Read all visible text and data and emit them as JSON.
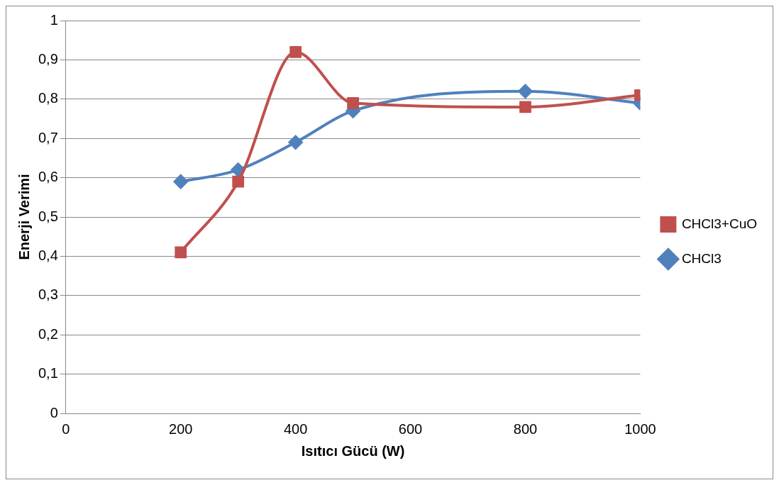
{
  "chart_data": {
    "type": "line",
    "xlabel": "Isıtıcı Gücü (W)",
    "ylabel": "Enerji Verimi",
    "x": [
      200,
      300,
      400,
      500,
      800,
      1000
    ],
    "series": [
      {
        "name": "CHCl3+CuO",
        "color": "#c0504d",
        "marker": "square",
        "values": [
          0.41,
          0.59,
          0.92,
          0.79,
          0.78,
          0.81
        ]
      },
      {
        "name": "CHCl3",
        "color": "#4f81bd",
        "marker": "diamond",
        "values": [
          0.59,
          0.62,
          0.69,
          0.77,
          0.82,
          0.79
        ]
      }
    ],
    "xlim": [
      0,
      1000
    ],
    "xticks": [
      0,
      200,
      400,
      600,
      800,
      1000
    ],
    "ylim": [
      0,
      1
    ],
    "yticks": [
      0,
      {
        "value": 0.1,
        "label": "0,1"
      },
      {
        "value": 0.2,
        "label": "0,2"
      },
      {
        "value": 0.3,
        "label": "0,3"
      },
      {
        "value": 0.4,
        "label": "0,4"
      },
      {
        "value": 0.5,
        "label": "0,5"
      },
      {
        "value": 0.6,
        "label": "0,6"
      },
      {
        "value": 0.7,
        "label": "0,7"
      },
      {
        "value": 0.8,
        "label": "0,8"
      },
      {
        "value": 0.9,
        "label": "0,9"
      },
      1
    ],
    "grid": "y",
    "legend": "right",
    "line_style": "solid"
  }
}
